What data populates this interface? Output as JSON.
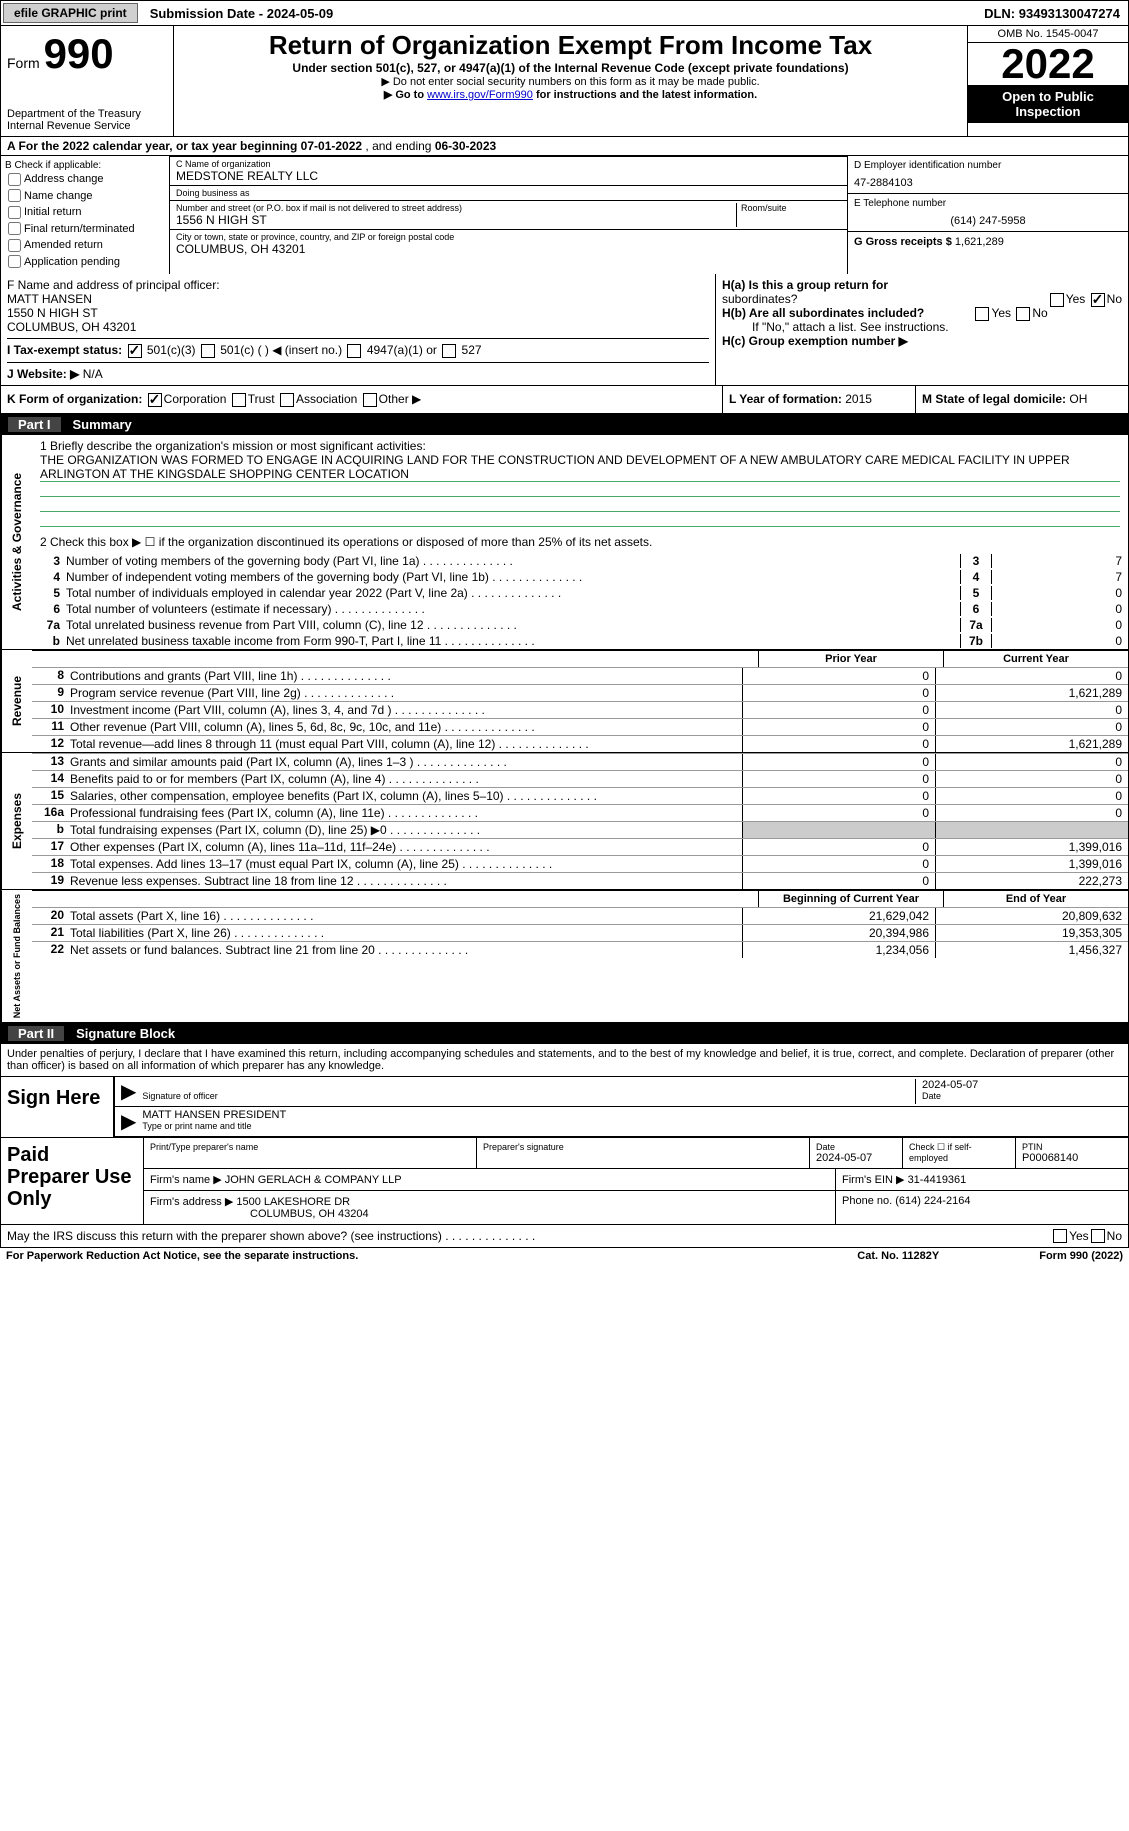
{
  "topbar": {
    "efile": "efile GRAPHIC print",
    "sub_date_label": "Submission Date - ",
    "sub_date": "2024-05-09",
    "dln_label": "DLN: ",
    "dln": "93493130047274"
  },
  "header": {
    "form_label": "Form",
    "form_num": "990",
    "dept": "Department of the Treasury\nInternal Revenue Service",
    "title": "Return of Organization Exempt From Income Tax",
    "subtitle": "Under section 501(c), 527, or 4947(a)(1) of the Internal Revenue Code (except private foundations)",
    "note1": "▶ Do not enter social security numbers on this form as it may be made public.",
    "note2_pre": "▶ Go to ",
    "note2_link": "www.irs.gov/Form990",
    "note2_post": " for instructions and the latest information.",
    "omb": "OMB No. 1545-0047",
    "year": "2022",
    "inspect": "Open to Public Inspection"
  },
  "line_a": {
    "pre": "A For the 2022 calendar year, or tax year beginning ",
    "begin": "07-01-2022",
    "mid": "   , and ending ",
    "end": "06-30-2023"
  },
  "col_b": {
    "label": "B Check if applicable:",
    "opts": [
      "Address change",
      "Name change",
      "Initial return",
      "Final return/terminated",
      "Amended return",
      "Application pending"
    ]
  },
  "col_c": {
    "name_lbl": "C Name of organization",
    "name": "MEDSTONE REALTY LLC",
    "dba_lbl": "Doing business as",
    "dba": "",
    "addr_lbl": "Number and street (or P.O. box if mail is not delivered to street address)",
    "room_lbl": "Room/suite",
    "addr": "1556 N HIGH ST",
    "city_lbl": "City or town, state or province, country, and ZIP or foreign postal code",
    "city": "COLUMBUS, OH  43201"
  },
  "col_d": {
    "ein_lbl": "D Employer identification number",
    "ein": "47-2884103",
    "phone_lbl": "E Telephone number",
    "phone": "(614) 247-5958",
    "gross_lbl": "G Gross receipts $ ",
    "gross": "1,621,289"
  },
  "row_f": {
    "lbl": "F Name and address of principal officer:",
    "name": "MATT HANSEN",
    "addr1": "1550 N HIGH ST",
    "addr2": "COLUMBUS, OH  43201"
  },
  "row_h": {
    "a_lbl": "H(a)  Is this a group return for",
    "a_sub": "subordinates?",
    "a_no": "No",
    "b_lbl": "H(b)  Are all subordinates included?",
    "b_note": "If \"No,\" attach a list. See instructions.",
    "c_lbl": "H(c)  Group exemption number ▶"
  },
  "row_i": {
    "lbl": "I   Tax-exempt status:",
    "o1": "501(c)(3)",
    "o2": "501(c) (   ) ◀ (insert no.)",
    "o3": "4947(a)(1) or",
    "o4": "527"
  },
  "row_j": {
    "lbl": "J   Website: ▶",
    "val": "N/A"
  },
  "row_k": {
    "lbl": "K Form of organization:",
    "o1": "Corporation",
    "o2": "Trust",
    "o3": "Association",
    "o4": "Other ▶"
  },
  "row_l": {
    "lbl": "L Year of formation: ",
    "val": "2015"
  },
  "row_m": {
    "lbl": "M State of legal domicile: ",
    "val": "OH"
  },
  "part1": {
    "num": "Part I",
    "title": "Summary"
  },
  "mission": {
    "lbl": "1   Briefly describe the organization's mission or most significant activities:",
    "text": "THE ORGANIZATION WAS FORMED TO ENGAGE IN ACQUIRING LAND FOR THE CONSTRUCTION AND DEVELOPMENT OF A NEW AMBULATORY CARE MEDICAL FACILITY IN UPPER ARLINGTON AT THE KINGSDALE SHOPPING CENTER LOCATION"
  },
  "line2": "2   Check this box ▶ ☐ if the organization discontinued its operations or disposed of more than 25% of its net assets.",
  "gov_lines": [
    {
      "n": "3",
      "t": "Number of voting members of the governing body (Part VI, line 1a)",
      "box": "3",
      "v": "7"
    },
    {
      "n": "4",
      "t": "Number of independent voting members of the governing body (Part VI, line 1b)",
      "box": "4",
      "v": "7"
    },
    {
      "n": "5",
      "t": "Total number of individuals employed in calendar year 2022 (Part V, line 2a)",
      "box": "5",
      "v": "0"
    },
    {
      "n": "6",
      "t": "Total number of volunteers (estimate if necessary)",
      "box": "6",
      "v": "0"
    },
    {
      "n": "7a",
      "t": "Total unrelated business revenue from Part VIII, column (C), line 12",
      "box": "7a",
      "v": "0"
    },
    {
      "n": "b",
      "t": "Net unrelated business taxable income from Form 990-T, Part I, line 11",
      "box": "7b",
      "v": "0"
    }
  ],
  "colheads": {
    "prior": "Prior Year",
    "current": "Current Year"
  },
  "rev_lines": [
    {
      "n": "8",
      "t": "Contributions and grants (Part VIII, line 1h)",
      "p": "0",
      "c": "0"
    },
    {
      "n": "9",
      "t": "Program service revenue (Part VIII, line 2g)",
      "p": "0",
      "c": "1,621,289"
    },
    {
      "n": "10",
      "t": "Investment income (Part VIII, column (A), lines 3, 4, and 7d )",
      "p": "0",
      "c": "0"
    },
    {
      "n": "11",
      "t": "Other revenue (Part VIII, column (A), lines 5, 6d, 8c, 9c, 10c, and 11e)",
      "p": "0",
      "c": "0"
    },
    {
      "n": "12",
      "t": "Total revenue—add lines 8 through 11 (must equal Part VIII, column (A), line 12)",
      "p": "0",
      "c": "1,621,289"
    }
  ],
  "exp_lines": [
    {
      "n": "13",
      "t": "Grants and similar amounts paid (Part IX, column (A), lines 1–3 )",
      "p": "0",
      "c": "0"
    },
    {
      "n": "14",
      "t": "Benefits paid to or for members (Part IX, column (A), line 4)",
      "p": "0",
      "c": "0"
    },
    {
      "n": "15",
      "t": "Salaries, other compensation, employee benefits (Part IX, column (A), lines 5–10)",
      "p": "0",
      "c": "0"
    },
    {
      "n": "16a",
      "t": "Professional fundraising fees (Part IX, column (A), line 11e)",
      "p": "0",
      "c": "0"
    },
    {
      "n": "b",
      "t": "Total fundraising expenses (Part IX, column (D), line 25) ▶0",
      "p": "",
      "c": "",
      "shaded": true
    },
    {
      "n": "17",
      "t": "Other expenses (Part IX, column (A), lines 11a–11d, 11f–24e)",
      "p": "0",
      "c": "1,399,016"
    },
    {
      "n": "18",
      "t": "Total expenses. Add lines 13–17 (must equal Part IX, column (A), line 25)",
      "p": "0",
      "c": "1,399,016"
    },
    {
      "n": "19",
      "t": "Revenue less expenses. Subtract line 18 from line 12",
      "p": "0",
      "c": "222,273"
    }
  ],
  "net_heads": {
    "begin": "Beginning of Current Year",
    "end": "End of Year"
  },
  "net_lines": [
    {
      "n": "20",
      "t": "Total assets (Part X, line 16)",
      "p": "21,629,042",
      "c": "20,809,632"
    },
    {
      "n": "21",
      "t": "Total liabilities (Part X, line 26)",
      "p": "20,394,986",
      "c": "19,353,305"
    },
    {
      "n": "22",
      "t": "Net assets or fund balances. Subtract line 21 from line 20",
      "p": "1,234,056",
      "c": "1,456,327"
    }
  ],
  "part2": {
    "num": "Part II",
    "title": "Signature Block"
  },
  "penalties": "Under penalties of perjury, I declare that I have examined this return, including accompanying schedules and statements, and to the best of my knowledge and belief, it is true, correct, and complete. Declaration of preparer (other than officer) is based on all information of which preparer has any knowledge.",
  "sign": {
    "label": "Sign Here",
    "sig_lbl": "Signature of officer",
    "date": "2024-05-07",
    "date_lbl": "Date",
    "name": "MATT HANSEN  PRESIDENT",
    "name_lbl": "Type or print name and title"
  },
  "preparer": {
    "label": "Paid Preparer Use Only",
    "name_lbl": "Print/Type preparer's name",
    "sig_lbl": "Preparer's signature",
    "date_lbl": "Date",
    "date": "2024-05-07",
    "check_lbl": "Check ☐ if self-employed",
    "ptin_lbl": "PTIN",
    "ptin": "P00068140",
    "firm_name_lbl": "Firm's name    ▶ ",
    "firm_name": "JOHN GERLACH & COMPANY LLP",
    "firm_ein_lbl": "Firm's EIN ▶ ",
    "firm_ein": "31-4419361",
    "firm_addr_lbl": "Firm's address ▶ ",
    "firm_addr": "1500 LAKESHORE DR",
    "firm_city": "COLUMBUS, OH  43204",
    "phone_lbl": "Phone no. ",
    "phone": "(614) 224-2164"
  },
  "footer_q": "May the IRS discuss this return with the preparer shown above? (see instructions)",
  "footer": {
    "left": "For Paperwork Reduction Act Notice, see the separate instructions.",
    "mid": "Cat. No. 11282Y",
    "right": "Form 990 (2022)"
  },
  "vert_labels": {
    "gov": "Activities & Governance",
    "rev": "Revenue",
    "exp": "Expenses",
    "net": "Net Assets or Fund Balances"
  }
}
